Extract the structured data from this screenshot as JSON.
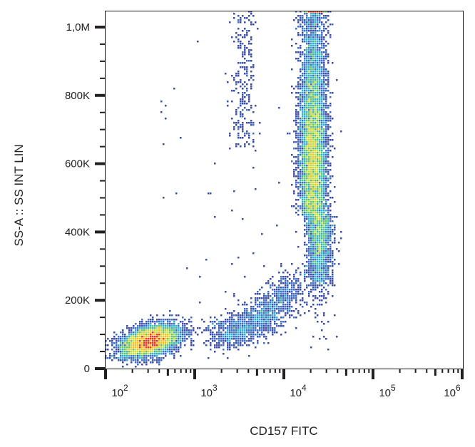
{
  "chart_data": {
    "type": "scatter",
    "subtype": "flow-cytometry density dot plot",
    "xlabel": "CD157 FITC",
    "ylabel": "SS-A :: SS INT LIN",
    "x_scale": "log",
    "xlim": [
      100,
      1000000
    ],
    "ylim": [
      0,
      1050000
    ],
    "x_ticks": [
      {
        "value": 100,
        "base": "10",
        "exp": "2"
      },
      {
        "value": 1000,
        "base": "10",
        "exp": "3"
      },
      {
        "value": 10000,
        "base": "10",
        "exp": "4"
      },
      {
        "value": 100000,
        "base": "10",
        "exp": "5"
      },
      {
        "value": 1000000,
        "base": "10",
        "exp": "6"
      }
    ],
    "y_ticks": [
      {
        "value": 0,
        "label": "0"
      },
      {
        "value": 200000,
        "label": "200K"
      },
      {
        "value": 400000,
        "label": "400K"
      },
      {
        "value": 600000,
        "label": "600K"
      },
      {
        "value": 800000,
        "label": "800K"
      },
      {
        "value": 1000000,
        "label": "1,0M"
      }
    ],
    "grid": false,
    "density_colors": [
      "#3b4ba8",
      "#3f6fc4",
      "#2fb0d0",
      "#5fc56a",
      "#c8dc3a",
      "#f2c21e",
      "#e8361c"
    ],
    "populations": [
      {
        "x_center": 300,
        "y_center": 80000,
        "density": "high"
      },
      {
        "x_center": 21000,
        "y_range": [
          250000,
          1050000
        ],
        "density": "high"
      },
      {
        "x_range": [
          2000,
          12600
        ],
        "y_range": [
          100000,
          250000
        ],
        "density": "low"
      },
      {
        "x_center": 3500,
        "y_range": [
          650000,
          1050000
        ],
        "density": "low"
      }
    ]
  }
}
